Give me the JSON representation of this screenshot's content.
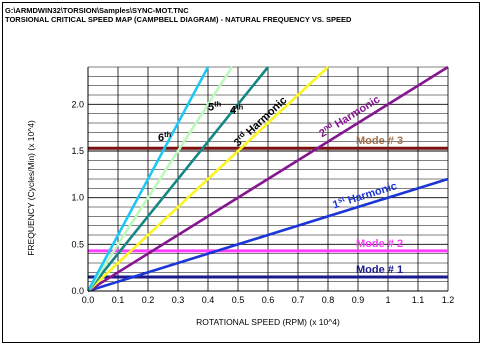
{
  "header": {
    "path": "G:\\ARMDWIN32\\TORSION\\Samples\\SYNC-MOT.TNC",
    "title": "TORSIONAL CRITICAL SPEED MAP (CAMPBELL DIAGRAM) - NATURAL FREQUENCY VS. SPEED"
  },
  "chart_data": {
    "type": "line",
    "xlabel": "ROTATIONAL SPEED (RPM) (x 10^4)",
    "ylabel": "FREQUENCY (Cycles/Min) (x 10^4)",
    "xlim": [
      0,
      1.2
    ],
    "ylim": [
      0,
      2.4
    ],
    "xticks": [
      "0.0",
      "0.1",
      "0.2",
      "0.3",
      "0.4",
      "0.5",
      "0.6",
      "0.7",
      "0.8",
      "0.9",
      "1",
      "1.1",
      "1.2"
    ],
    "yticks": [
      "0.0",
      "0.5",
      "1.0",
      "1.5",
      "2.0"
    ],
    "grid": true,
    "harmonics": [
      {
        "order": 1,
        "label_num": "1",
        "label_sup": "st",
        "label_text": " Harmonic",
        "color": "#1c35d6",
        "x": [
          0,
          1.2
        ],
        "y": [
          0,
          1.2
        ]
      },
      {
        "order": 2,
        "label_num": "2",
        "label_sup": "nd",
        "label_text": " Harmonic",
        "color": "#861590",
        "x": [
          0,
          1.2
        ],
        "y": [
          0,
          2.4
        ]
      },
      {
        "order": 3,
        "label_num": "3",
        "label_sup": "rd",
        "label_text": " Harmonic",
        "color": "#fbf41e",
        "x": [
          0,
          0.8
        ],
        "y": [
          0,
          2.4
        ]
      },
      {
        "order": 4,
        "label_num": "4",
        "label_sup": "th",
        "label_text": "",
        "color": "#178683",
        "x": [
          0,
          0.6
        ],
        "y": [
          0,
          2.4
        ]
      },
      {
        "order": 5,
        "label_num": "5",
        "label_sup": "th",
        "label_text": "",
        "color": "#bdf8bd",
        "x": [
          0,
          0.48
        ],
        "y": [
          0,
          2.4
        ]
      },
      {
        "order": 6,
        "label_num": "6",
        "label_sup": "th",
        "label_text": "",
        "color": "#1dc8f6",
        "x": [
          0,
          0.4
        ],
        "y": [
          0,
          2.4
        ]
      }
    ],
    "modes": [
      {
        "label": "Mode # 1",
        "value": 0.15,
        "color": "#1a1a8c"
      },
      {
        "label": "Mode # 2",
        "value": 0.43,
        "color": "#ff3cff"
      },
      {
        "label": "Mode # 3",
        "value": 1.53,
        "color": "#7b1010"
      }
    ],
    "mode_label_colors": {
      "Mode # 1": "#1a1a8c",
      "Mode # 2": "#ff3cff",
      "Mode # 3": "#a0704c"
    }
  }
}
